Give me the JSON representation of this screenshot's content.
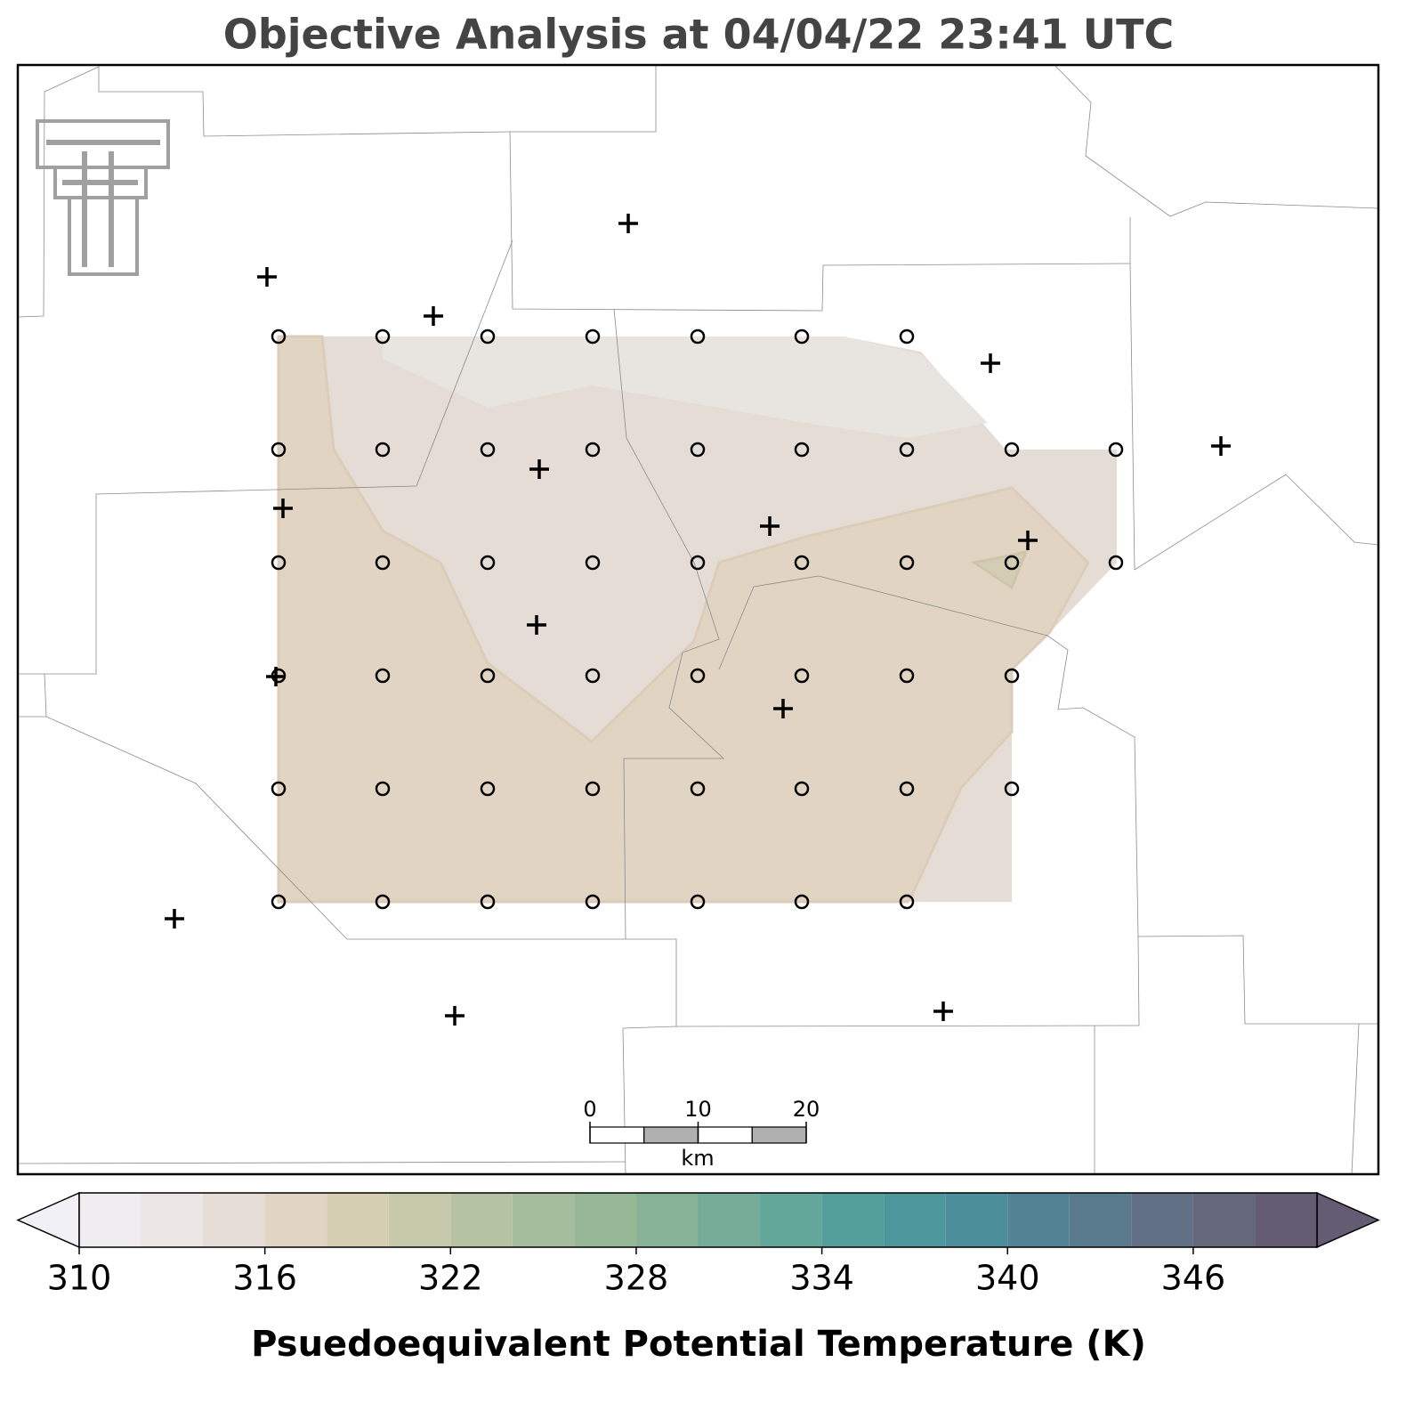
{
  "title": "Objective Analysis at 04/04/22 23:41 UTC",
  "scale_bar": {
    "ticks": [
      0,
      10,
      20
    ],
    "unit": "km"
  },
  "colorbar": {
    "label": "Psuedoequivalent Potential Temperature (K)",
    "levels": [
      310,
      312,
      314,
      316,
      318,
      320,
      322,
      324,
      326,
      328,
      330,
      332,
      334,
      336,
      338,
      340,
      342,
      344,
      346,
      348,
      350
    ],
    "ticks": [
      310,
      316,
      322,
      328,
      334,
      340,
      346
    ],
    "colors": [
      "#efedf0",
      "#ebe6e4",
      "#e5ddd5",
      "#e2d4c2",
      "#d6ceb3",
      "#c7c9ab",
      "#b6c3a3",
      "#a6bd9d",
      "#97b896",
      "#86b397",
      "#75ad98",
      "#63a79a",
      "#559f9b",
      "#4b979c",
      "#4b8d99",
      "#518395",
      "#5a7a8e",
      "#627085",
      "#65677b",
      "#645c73"
    ],
    "under_color": "#f1f0f6",
    "over_color": "#645c73"
  }
}
